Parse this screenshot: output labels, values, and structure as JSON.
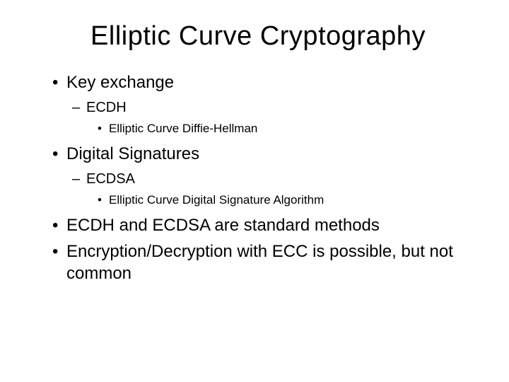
{
  "title": "Elliptic Curve Cryptography",
  "bullets": {
    "b1": "Key exchange",
    "b1_1": "ECDH",
    "b1_1_1": "Elliptic Curve Diffie-Hellman",
    "b2": "Digital Signatures",
    "b2_1": "ECDSA",
    "b2_1_1": "Elliptic Curve Digital Signature Algorithm",
    "b3": "ECDH and ECDSA are standard methods",
    "b4": "Encryption/Decryption with ECC is possible, but not common"
  },
  "styling": {
    "background_color": "#ffffff",
    "text_color": "#000000",
    "title_fontsize": 38,
    "l1_fontsize": 24,
    "l2_fontsize": 20,
    "l3_fontsize": 17,
    "font_family": "Arial"
  }
}
